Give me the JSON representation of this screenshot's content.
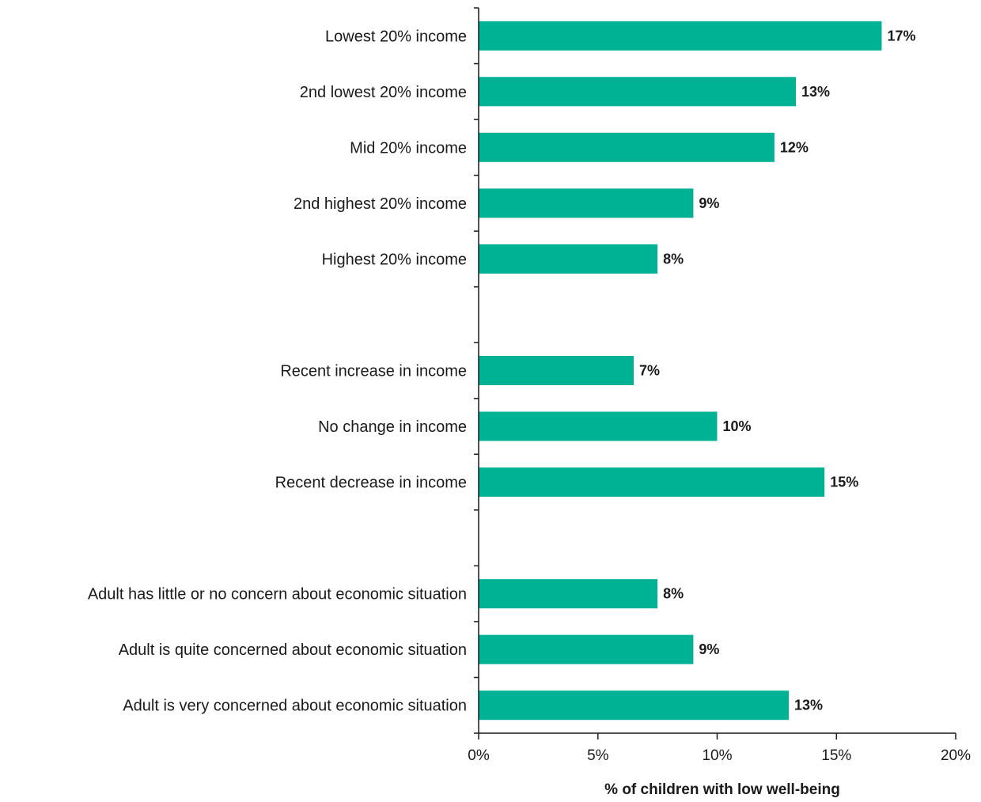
{
  "chart_data": {
    "type": "bar",
    "orientation": "horizontal",
    "categories": [
      "Lowest 20% income",
      "2nd lowest 20% income",
      "Mid 20% income",
      "2nd highest 20% income",
      "Highest 20% income",
      "",
      "Recent increase in income",
      "No change in income",
      "Recent decrease in income",
      "",
      "Adult has little or no concern about economic situation",
      "Adult is quite concerned about economic situation",
      "Adult is very concerned about economic situation"
    ],
    "values": [
      16.9,
      13.3,
      12.4,
      9.0,
      7.5,
      null,
      6.5,
      10.0,
      14.5,
      null,
      7.5,
      9.0,
      13.0
    ],
    "value_labels": [
      "17%",
      "13%",
      "12%",
      "9%",
      "8%",
      "",
      "7%",
      "10%",
      "15%",
      "",
      "8%",
      "9%",
      "13%"
    ],
    "xlabel": "% of children with low well-being",
    "ylabel": "",
    "xlim": [
      0,
      20
    ],
    "x_ticks": [
      0,
      5,
      10,
      15,
      20
    ],
    "x_tick_labels": [
      "0%",
      "5%",
      "10%",
      "15%",
      "20%"
    ],
    "grid": false,
    "legend": "none",
    "bar_color": "#00b294"
  }
}
